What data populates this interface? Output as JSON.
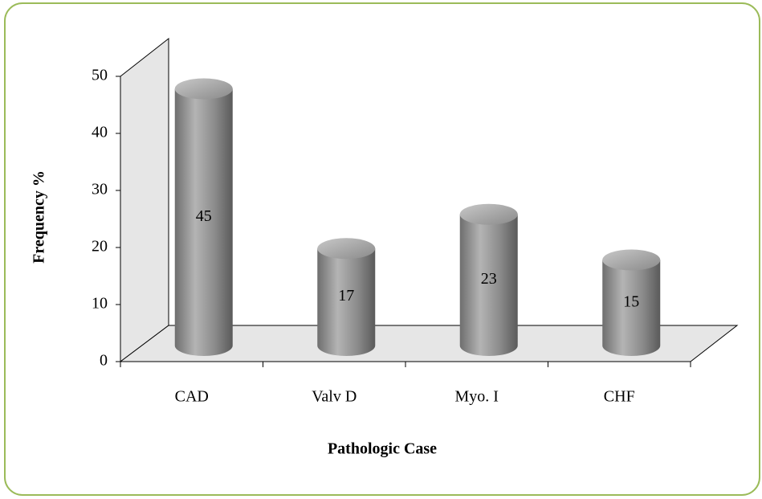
{
  "chart_data": {
    "type": "bar",
    "categories": [
      "CAD",
      "Valv D",
      "Myo. I",
      "CHF"
    ],
    "values": [
      45,
      17,
      23,
      15
    ],
    "color": "#8c8c8c",
    "xlabel": "Pathologic Case",
    "ylabel": "Frequency %",
    "ylim": [
      0,
      50
    ],
    "yticks": [
      0,
      10,
      20,
      30,
      40,
      50
    ]
  }
}
